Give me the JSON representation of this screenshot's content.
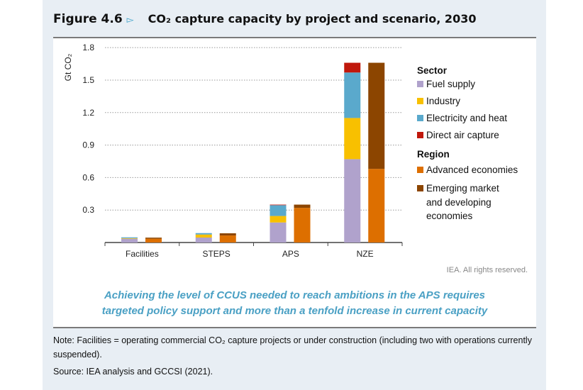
{
  "header": {
    "figure_label": "Figure 4.6",
    "title": "CO₂ capture capacity by project and scenario, 2030"
  },
  "chart_data": {
    "type": "bar",
    "stacked": true,
    "title": "CO₂ capture capacity by project and scenario, 2030",
    "ylabel": "Gt CO₂",
    "ylim": [
      0,
      1.8
    ],
    "yticks": [
      "0.3",
      "0.6",
      "0.9",
      "1.2",
      "1.5",
      "1.8"
    ],
    "grid": true,
    "legend_position": "right",
    "categories": [
      "Facilities",
      "STEPS",
      "APS",
      "NZE"
    ],
    "groups": [
      {
        "name": "Sector",
        "series": [
          {
            "name": "Fuel supply",
            "color": "#b0a2cc",
            "values": [
              0.035,
              0.046,
              0.185,
              0.77
            ]
          },
          {
            "name": "Industry",
            "color": "#f8c000",
            "values": [
              0.005,
              0.028,
              0.06,
              0.38
            ]
          },
          {
            "name": "Electricity and heat",
            "color": "#5aa9cc",
            "values": [
              0.008,
              0.013,
              0.1,
              0.42
            ]
          },
          {
            "name": "Direct air capture",
            "color": "#c0180c",
            "values": [
              0,
              0,
              0.005,
              0.09
            ]
          }
        ]
      },
      {
        "name": "Region",
        "series": [
          {
            "name": "Advanced economies",
            "color": "#dd6f00",
            "values": [
              0.035,
              0.065,
              0.32,
              0.68
            ]
          },
          {
            "name": "Emerging market and developing economies",
            "color": "#8c4500",
            "values": [
              0.01,
              0.02,
              0.03,
              0.98
            ]
          }
        ]
      }
    ]
  },
  "legend": {
    "sector_title": "Sector",
    "region_title": "Region",
    "emerging_lines": [
      "Emerging market",
      "and developing",
      "economies"
    ]
  },
  "rights": "IEA. All rights reserved.",
  "message": [
    "Achieving the level of CCUS needed to reach ambitions in the APS requires",
    "targeted policy support and more than a tenfold increase in current capacity"
  ],
  "note": "Note: Facilities = operating commercial CO₂ capture projects or under construction (including two with operations currently suspended).",
  "source": "Source: IEA analysis and GCCSI (2021)."
}
